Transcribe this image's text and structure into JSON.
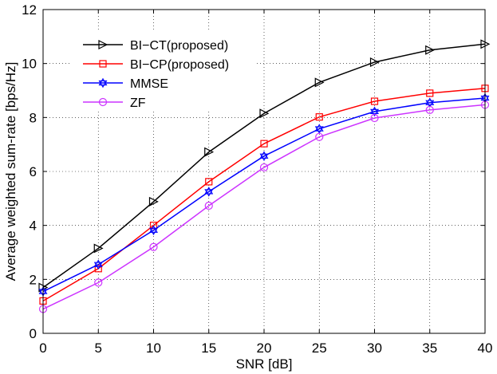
{
  "chart_data": {
    "type": "line",
    "title": "",
    "xlabel": "SNR [dB]",
    "ylabel": "Average weighted sum-rate [bps/Hz]",
    "x": [
      0,
      5,
      10,
      15,
      20,
      25,
      30,
      35,
      40
    ],
    "xlim": [
      0,
      40
    ],
    "ylim": [
      0,
      12
    ],
    "xticks": [
      0,
      5,
      10,
      15,
      20,
      25,
      30,
      35,
      40
    ],
    "yticks": [
      0,
      2,
      4,
      6,
      8,
      10,
      12
    ],
    "grid": true,
    "legend_position": "top-left",
    "series": [
      {
        "name": "BI−CT(proposed)",
        "color": "#000000",
        "marker": "triangle-right",
        "values": [
          1.7,
          3.15,
          4.88,
          6.72,
          8.15,
          9.3,
          10.05,
          10.5,
          10.72
        ]
      },
      {
        "name": "BI−CP(proposed)",
        "color": "#ff0000",
        "marker": "square",
        "values": [
          1.2,
          2.4,
          4.0,
          5.62,
          7.03,
          8.02,
          8.6,
          8.9,
          9.08
        ]
      },
      {
        "name": "MMSE",
        "color": "#0000ff",
        "marker": "hexagram",
        "values": [
          1.55,
          2.55,
          3.82,
          5.25,
          6.57,
          7.58,
          8.22,
          8.55,
          8.72
        ]
      },
      {
        "name": "ZF",
        "color": "#cc33ff",
        "marker": "circle",
        "values": [
          0.9,
          1.88,
          3.2,
          4.73,
          6.15,
          7.28,
          7.98,
          8.28,
          8.47
        ]
      }
    ]
  }
}
